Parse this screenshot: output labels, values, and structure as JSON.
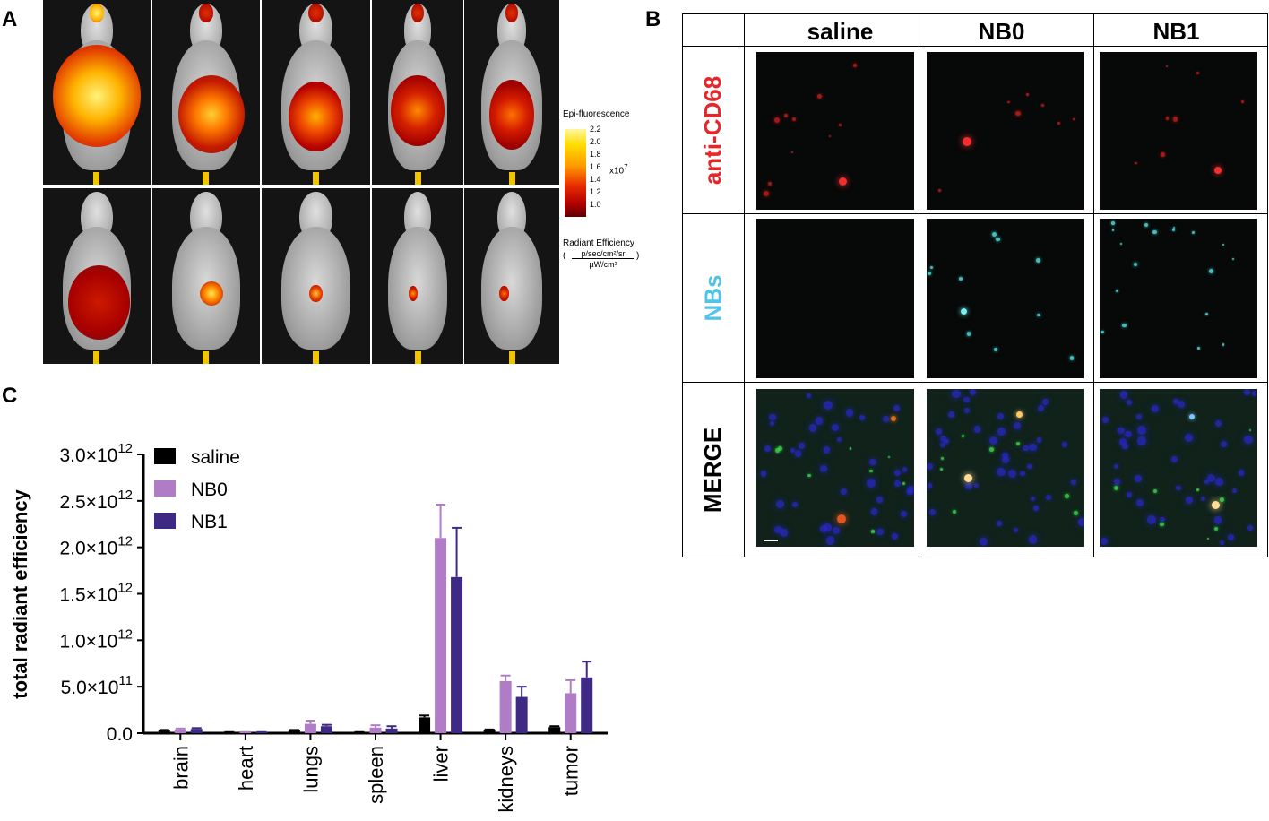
{
  "panels": {
    "a_letter": "A",
    "b_letter": "B",
    "c_letter": "C"
  },
  "panel_a": {
    "legend_title": "Epi-fluorescence",
    "scale_ticks": [
      "2.2",
      "2.0",
      "1.8",
      "1.6",
      "1.4",
      "1.2",
      "1.0"
    ],
    "scale_multiplier": "x10",
    "scale_exponent": "7",
    "units_label": "Radiant Efficiency",
    "units_numerator": "p/sec/cm²/sr",
    "units_denominator": "µW/cm²",
    "colorbar_colors": [
      "#fff7a0",
      "#ffdd00",
      "#ff9a00",
      "#e82a00",
      "#b00000",
      "#5c0000"
    ]
  },
  "panel_b": {
    "columns": [
      "saline",
      "NB0",
      "NB1"
    ],
    "rows": [
      "anti-CD68",
      "NBs",
      "MERGE"
    ],
    "row_colors": [
      "#e8262a",
      "#4fc3e8",
      "#000000"
    ]
  },
  "chart_data": {
    "type": "bar",
    "categories": [
      "brain",
      "heart",
      "lungs",
      "spleen",
      "liver",
      "kidneys",
      "tumor"
    ],
    "series": [
      {
        "name": "saline",
        "color": "#000000",
        "values": [
          30000000000.0,
          10000000000.0,
          30000000000.0,
          10000000000.0,
          170000000000.0,
          35000000000.0,
          65000000000.0
        ],
        "errors": [
          5000000000.0,
          2000000000.0,
          5000000000.0,
          2000000000.0,
          20000000000.0,
          5000000000.0,
          10000000000.0
        ]
      },
      {
        "name": "NB0",
        "color": "#b07cc6",
        "values": [
          40000000000.0,
          10000000000.0,
          100000000000.0,
          60000000000.0,
          2100000000000.0,
          560000000000.0,
          430000000000.0
        ],
        "errors": [
          10000000000.0,
          2000000000.0,
          35000000000.0,
          25000000000.0,
          360000000000.0,
          60000000000.0,
          140000000000.0
        ]
      },
      {
        "name": "NB1",
        "color": "#3e2a84",
        "values": [
          45000000000.0,
          10000000000.0,
          75000000000.0,
          50000000000.0,
          1680000000000.0,
          390000000000.0,
          600000000000.0
        ],
        "errors": [
          10000000000.0,
          2000000000.0,
          15000000000.0,
          25000000000.0,
          530000000000.0,
          110000000000.0,
          170000000000.0
        ]
      }
    ],
    "ylabel": "total radiant efficiency",
    "ylim": [
      0,
      3000000000000.0
    ],
    "yticks": [
      {
        "value": 0,
        "mantissa": "0.0",
        "exp": ""
      },
      {
        "value": 500000000000.0,
        "mantissa": "5.0×10",
        "exp": "11"
      },
      {
        "value": 1000000000000.0,
        "mantissa": "1.0×10",
        "exp": "12"
      },
      {
        "value": 1500000000000.0,
        "mantissa": "1.5×10",
        "exp": "12"
      },
      {
        "value": 2000000000000.0,
        "mantissa": "2.0×10",
        "exp": "12"
      },
      {
        "value": 2500000000000.0,
        "mantissa": "2.5×10",
        "exp": "12"
      },
      {
        "value": 3000000000000.0,
        "mantissa": "3.0×10",
        "exp": "12"
      }
    ],
    "legend_position": "top-left"
  }
}
